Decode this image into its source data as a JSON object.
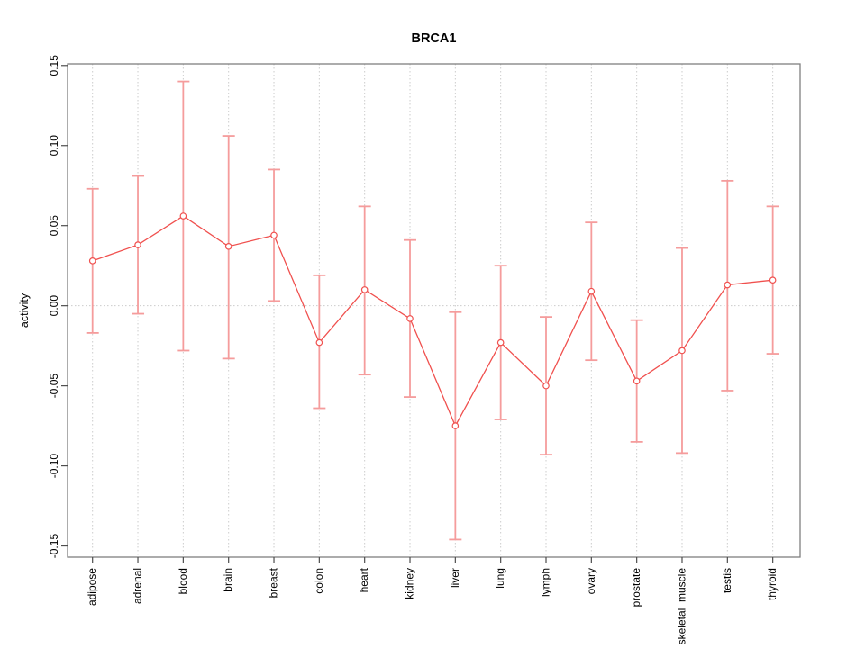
{
  "figure": {
    "title": "BRCA1",
    "ylabel": "activity",
    "xlabel": ""
  },
  "chart_data": {
    "type": "line",
    "subtype": "points-with-error-bars",
    "title": "BRCA1",
    "xlabel": "",
    "ylabel": "activity",
    "categories": [
      "adipose",
      "adrenal",
      "blood",
      "brain",
      "breast",
      "colon",
      "heart",
      "kidney",
      "liver",
      "lung",
      "lymph",
      "ovary",
      "prostate",
      "skeletal_muscle",
      "testis",
      "thyroid"
    ],
    "series": [
      {
        "name": "BRCA1 activity",
        "values": [
          0.028,
          0.038,
          0.056,
          0.037,
          0.044,
          -0.023,
          0.01,
          -0.008,
          -0.075,
          -0.023,
          -0.05,
          0.009,
          -0.047,
          -0.028,
          0.013,
          0.016
        ],
        "upper": [
          0.073,
          0.081,
          0.14,
          0.106,
          0.085,
          0.019,
          0.062,
          0.041,
          -0.004,
          0.025,
          -0.007,
          0.052,
          -0.009,
          0.036,
          0.078,
          0.062
        ],
        "lower": [
          -0.017,
          -0.005,
          -0.028,
          -0.033,
          0.003,
          -0.064,
          -0.043,
          -0.057,
          -0.146,
          -0.071,
          -0.093,
          -0.034,
          -0.085,
          -0.092,
          -0.053,
          -0.03
        ]
      }
    ],
    "ylim": [
      -0.157,
      0.151
    ],
    "yticks": {
      "values": [
        -0.15,
        -0.1,
        -0.05,
        0.0,
        0.05,
        0.1,
        0.15
      ],
      "labels": [
        "-0.15",
        "-0.10",
        "-0.05",
        "0.00",
        "0.05",
        "0.10",
        "0.15"
      ]
    },
    "grid": {
      "vertical_dotted_at_each_category": true,
      "horizontal_dotted_at_zero": true,
      "legend": "none"
    },
    "marker": "open-circle",
    "colors": {
      "point_line": "#f0504e",
      "error_bar": "#f59c9c",
      "grid": "#cccccc",
      "frame": "#7f7f7f",
      "tick": "#4d4d4d",
      "text": "#000000",
      "background": "#ffffff"
    }
  }
}
